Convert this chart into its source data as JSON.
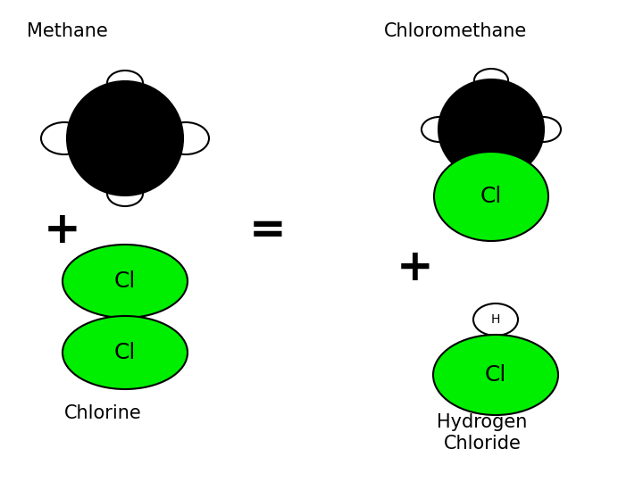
{
  "bg_color": "#ffffff",
  "black_color": "#000000",
  "green_color": "#00ee00",
  "white_color": "#ffffff",
  "label_methane": "Methane",
  "label_chloromethane": "Chloromethane",
  "label_chlorine": "Chlorine",
  "label_hcl": "Hydrogen\nChloride",
  "label_Cl": "Cl",
  "label_H": "H",
  "plus_sign": "+",
  "equals_sign": "=",
  "title_fontsize": 15,
  "cl_label_fontsize": 18,
  "small_label_fontsize": 10
}
